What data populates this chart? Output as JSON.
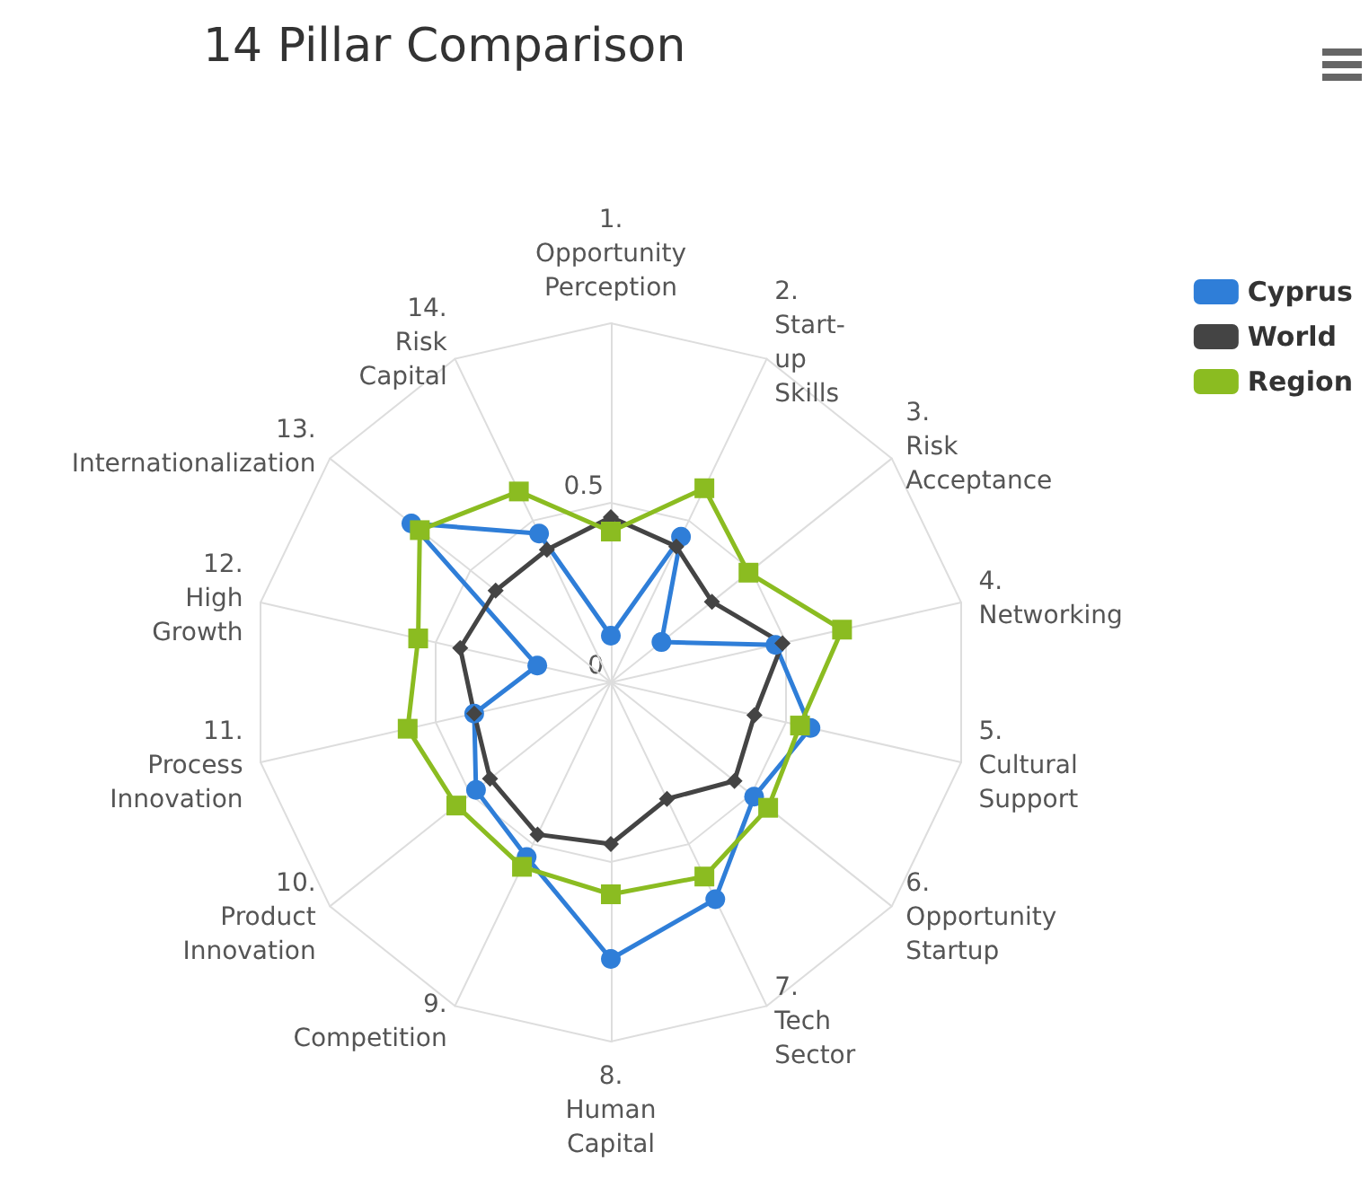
{
  "chart_data": {
    "type": "radar",
    "title": "14 Pillar Comparison",
    "categories": [
      "1. Opportunity Perception",
      "2. Start-up Skills",
      "3. Risk Acceptance",
      "4. Networking",
      "5. Cultural Support",
      "6. Opportunity Startup",
      "7. Tech Sector",
      "8. Human Capital",
      "9. Competition",
      "10. Product Innovation",
      "11. Process Innovation",
      "12. High Growth",
      "13. Internationalization",
      "14. Risk Capital"
    ],
    "series": [
      {
        "name": "Cyprus",
        "color": "#2f7ed8",
        "marker": "circle",
        "values": [
          0.13,
          0.45,
          0.18,
          0.47,
          0.57,
          0.51,
          0.67,
          0.77,
          0.54,
          0.48,
          0.39,
          0.21,
          0.71,
          0.46
        ]
      },
      {
        "name": "World",
        "color": "#444444",
        "marker": "diamond",
        "values": [
          0.46,
          0.42,
          0.36,
          0.49,
          0.41,
          0.44,
          0.36,
          0.45,
          0.47,
          0.43,
          0.39,
          0.43,
          0.41,
          0.41
        ]
      },
      {
        "name": "Region",
        "color": "#8bbc21",
        "marker": "square",
        "values": [
          0.42,
          0.6,
          0.49,
          0.66,
          0.54,
          0.56,
          0.6,
          0.59,
          0.57,
          0.55,
          0.58,
          0.55,
          0.68,
          0.59
        ]
      }
    ],
    "ylim": [
      0,
      1
    ],
    "yticks": [
      0,
      0.5
    ],
    "legend": "top right",
    "grid": true
  }
}
